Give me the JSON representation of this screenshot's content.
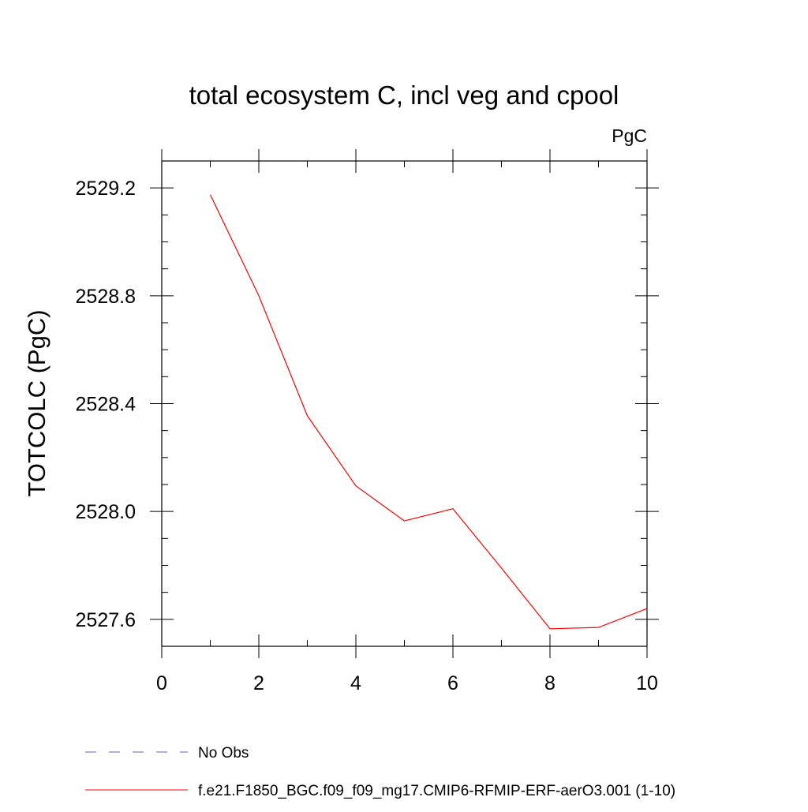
{
  "chart_data": {
    "type": "line",
    "title": "total ecosystem C, incl veg and cpool",
    "units_label": "PgC",
    "xlabel": "",
    "ylabel": "TOTCOLC  (PgC)",
    "xlim": [
      0,
      10
    ],
    "ylim": [
      2527.5,
      2529.3
    ],
    "x_ticks": [
      0,
      2,
      4,
      6,
      8,
      10
    ],
    "y_ticks": [
      2527.6,
      2528.0,
      2528.4,
      2528.8,
      2529.2
    ],
    "y_tick_labels": [
      "2527.6",
      "2528.0",
      "2528.4",
      "2528.8",
      "2529.2"
    ],
    "x_minor_step": 1,
    "y_minor_step": 0.1,
    "grid": false,
    "legend_position": "bottom",
    "series": [
      {
        "name": "f.e21.F1850_BGC.f09_f09_mg17.CMIP6-RFMIP-ERF-aerO3.001 (1-10)",
        "color": "#ff0000",
        "dash": "solid",
        "x": [
          1,
          2,
          3,
          4,
          5,
          6,
          7,
          8,
          9,
          10
        ],
        "y": [
          2529.175,
          2528.8,
          2528.355,
          2528.095,
          2527.965,
          2528.01,
          2527.79,
          2527.565,
          2527.57,
          2527.64
        ]
      }
    ],
    "legend": [
      {
        "label": "No Obs",
        "color": "#6a5fa8",
        "dash": "dashed"
      },
      {
        "label": "f.e21.F1850_BGC.f09_f09_mg17.CMIP6-RFMIP-ERF-aerO3.001 (1-10)",
        "color": "#ff0000",
        "dash": "solid"
      }
    ]
  }
}
